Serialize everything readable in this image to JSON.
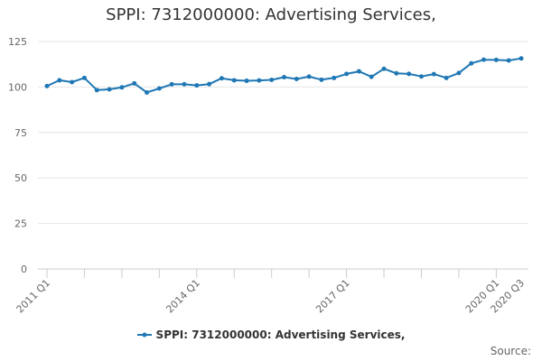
{
  "chart_data": {
    "type": "line",
    "title": "SPPI: 7312000000: Advertising Services,",
    "xlabel": "",
    "ylabel": "",
    "ylim": [
      0,
      125
    ],
    "yticks": [
      0,
      25,
      50,
      75,
      100,
      125
    ],
    "grid": true,
    "legend_position": "bottom-center",
    "x_tick_labels": [
      {
        "index": 0,
        "label": "2011 Q1"
      },
      {
        "index": 12,
        "label": "2014 Q1"
      },
      {
        "index": 24,
        "label": "2017 Q1"
      },
      {
        "index": 36,
        "label": "2020 Q1"
      },
      {
        "index": 38,
        "label": "2020 Q3"
      }
    ],
    "x": [
      "2011 Q1",
      "2011 Q2",
      "2011 Q3",
      "2011 Q4",
      "2012 Q1",
      "2012 Q2",
      "2012 Q3",
      "2012 Q4",
      "2013 Q1",
      "2013 Q2",
      "2013 Q3",
      "2013 Q4",
      "2014 Q1",
      "2014 Q2",
      "2014 Q3",
      "2014 Q4",
      "2015 Q1",
      "2015 Q2",
      "2015 Q3",
      "2015 Q4",
      "2016 Q1",
      "2016 Q2",
      "2016 Q3",
      "2016 Q4",
      "2017 Q1",
      "2017 Q2",
      "2017 Q3",
      "2017 Q4",
      "2018 Q1",
      "2018 Q2",
      "2018 Q3",
      "2018 Q4",
      "2019 Q1",
      "2019 Q2",
      "2019 Q3",
      "2019 Q4",
      "2020 Q1",
      "2020 Q2",
      "2020 Q3"
    ],
    "series": [
      {
        "name": "SPPI: 7312000000: Advertising Services,",
        "color": "#1f77b4",
        "values": [
          100.5,
          103.7,
          102.7,
          105.0,
          98.3,
          98.7,
          99.8,
          102.0,
          97.0,
          99.2,
          101.5,
          101.5,
          100.9,
          101.6,
          104.8,
          103.7,
          103.4,
          103.6,
          103.9,
          105.4,
          104.4,
          105.7,
          104.0,
          105.0,
          107.2,
          108.6,
          105.6,
          110.0,
          107.5,
          107.2,
          105.8,
          107.1,
          105.0,
          107.7,
          113.0,
          115.0,
          114.9,
          114.6,
          115.7
        ]
      }
    ]
  },
  "footer": {
    "source_label": "Source:"
  }
}
